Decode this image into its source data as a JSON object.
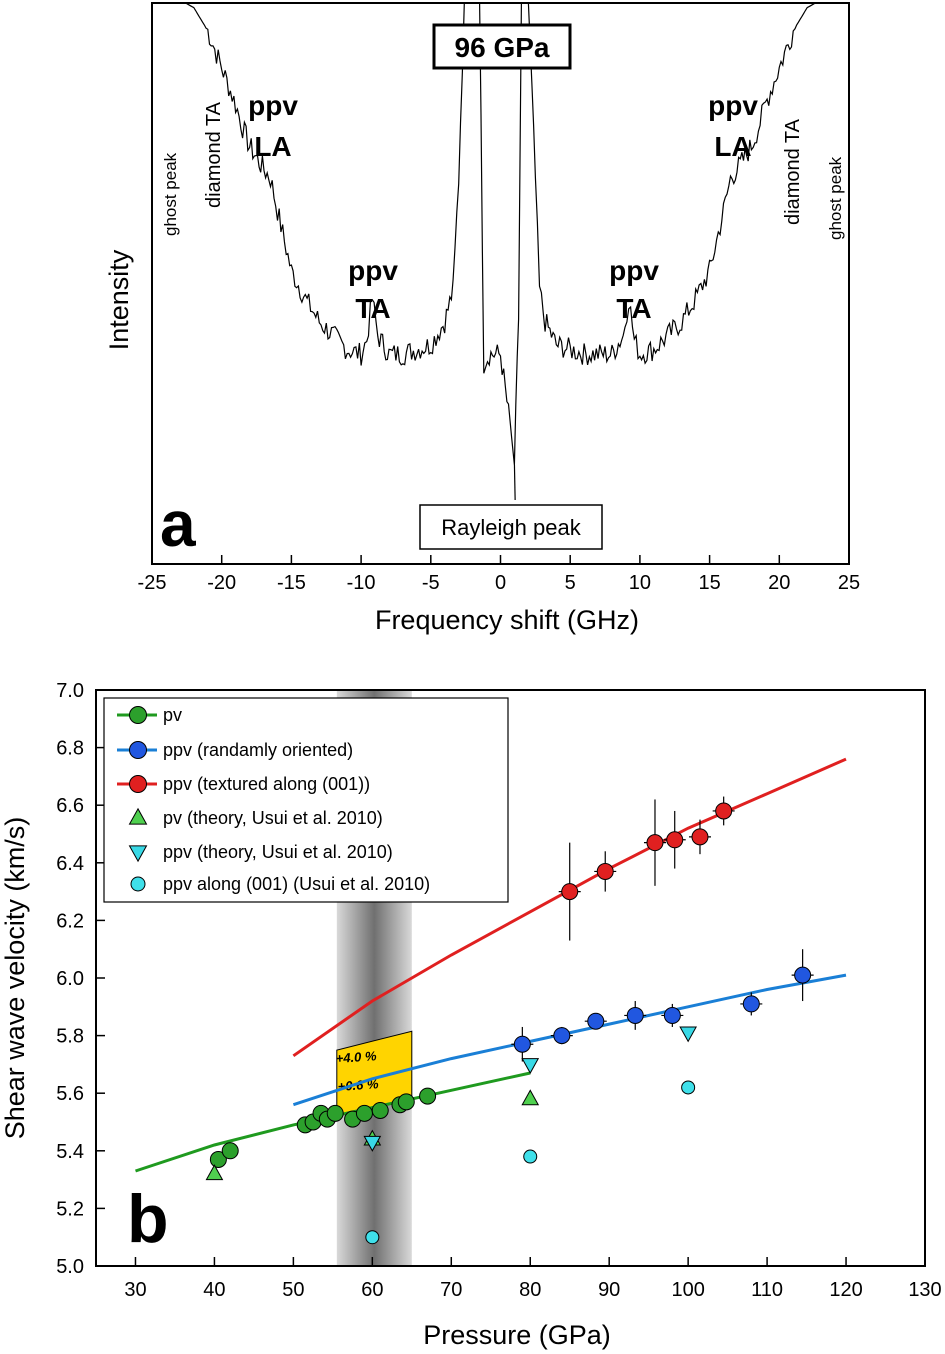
{
  "chart_data": [
    {
      "type": "line",
      "panel_letter": "a",
      "title": "96 GPa",
      "xlabel": "Frequency shift (GHz)",
      "ylabel": "Intensity",
      "xlim": [
        -25,
        25
      ],
      "xticks": [
        -25,
        -20,
        -15,
        -10,
        -5,
        0,
        5,
        10,
        15,
        20,
        25
      ],
      "annotations": {
        "ppv_la_left": [
          "ppv",
          "LA"
        ],
        "ppv_la_right": [
          "ppv",
          "LA"
        ],
        "ppv_ta_left": [
          "ppv",
          "TA"
        ],
        "ppv_ta_right": [
          "ppv",
          "TA"
        ],
        "diamond_ta": "diamond TA",
        "ghost_peak": "ghost peak",
        "rayleigh": "Rayleigh peak"
      },
      "spectrum": {
        "x": [
          -22.6,
          -22.0,
          -21.0,
          -20.0,
          -19.0,
          -18.5,
          -18.0,
          -17.2,
          -16.5,
          -16.0,
          -15.0,
          -14.0,
          -13.0,
          -12.0,
          -11.0,
          -10.0,
          -9.6,
          -9.2,
          -8.8,
          -8.0,
          -7.0,
          -6.0,
          -5.0,
          -4.0,
          -3.4,
          -3.0,
          -2.6,
          -2.0,
          -1.5,
          -1.2,
          -0.8,
          0.0,
          0.8,
          1.0,
          1.3,
          1.5,
          1.8,
          2.0,
          2.5,
          2.8,
          3.2,
          4.0,
          5.0,
          6.0,
          7.0,
          8.0,
          8.8,
          9.2,
          9.6,
          10.0,
          11.0,
          12.0,
          13.0,
          14.0,
          15.0,
          16.0,
          16.5,
          17.2,
          18.0,
          18.5,
          19.0,
          20.0,
          21.0,
          22.0,
          22.6
        ],
        "y": [
          1.0,
          0.99,
          0.94,
          0.86,
          0.78,
          0.73,
          0.69,
          0.65,
          0.62,
          0.55,
          0.42,
          0.36,
          0.31,
          0.28,
          0.25,
          0.24,
          0.27,
          0.36,
          0.28,
          0.24,
          0.24,
          0.25,
          0.26,
          0.31,
          0.38,
          0.62,
          1.0,
          1.0,
          1.0,
          0.22,
          0.24,
          0.24,
          0.06,
          0.0,
          0.32,
          1.0,
          1.0,
          1.0,
          0.62,
          0.38,
          0.31,
          0.26,
          0.25,
          0.24,
          0.24,
          0.24,
          0.28,
          0.36,
          0.27,
          0.24,
          0.25,
          0.28,
          0.31,
          0.36,
          0.42,
          0.55,
          0.62,
          0.65,
          0.69,
          0.73,
          0.78,
          0.86,
          0.94,
          0.99,
          1.0
        ]
      }
    },
    {
      "type": "scatter",
      "panel_letter": "b",
      "xlabel": "Pressure (GPa)",
      "ylabel": "Shear wave velocity (km/s)",
      "xlim": [
        25,
        130
      ],
      "ylim": [
        5.0,
        7.0
      ],
      "xticks": [
        30,
        40,
        50,
        60,
        70,
        80,
        90,
        100,
        110,
        120,
        130
      ],
      "yticks": [
        5.0,
        5.2,
        5.4,
        5.6,
        5.8,
        6.0,
        6.2,
        6.4,
        6.6,
        6.8,
        7.0
      ],
      "legend_position": "top-left",
      "shaded_band": {
        "x": [
          55.5,
          65.0
        ]
      },
      "annotations": {
        "pct_upper": "+4.0 %",
        "pct_lower": "+0.6 %"
      },
      "series": [
        {
          "name": "pv",
          "marker": "circle",
          "color": "#2ca02c",
          "line_color": "#1f9a1f",
          "x": [
            40.5,
            42.0,
            51.5,
            52.5,
            53.5,
            54.3,
            55.3,
            57.5,
            59.0,
            61.0,
            63.5,
            64.3,
            67.0
          ],
          "y": [
            5.37,
            5.4,
            5.49,
            5.5,
            5.53,
            5.51,
            5.53,
            5.51,
            5.53,
            5.54,
            5.56,
            5.57,
            5.59
          ],
          "fit_x": [
            30,
            40,
            50,
            60,
            70,
            80
          ],
          "fit_y": [
            5.33,
            5.42,
            5.49,
            5.55,
            5.61,
            5.67
          ]
        },
        {
          "name": "ppv (randamly oriented)",
          "marker": "circle",
          "color": "#2157e0",
          "line_color": "#1a7fd6",
          "x": [
            79.0,
            84.0,
            88.3,
            93.3,
            98.0,
            108.0,
            114.5
          ],
          "y": [
            5.77,
            5.8,
            5.85,
            5.87,
            5.87,
            5.91,
            6.01
          ],
          "err": [
            0.06,
            0.03,
            0.02,
            0.05,
            0.04,
            0.04,
            0.09
          ],
          "fit_x": [
            50,
            60,
            70,
            80,
            90,
            100,
            110,
            120
          ],
          "fit_y": [
            5.56,
            5.65,
            5.72,
            5.78,
            5.84,
            5.9,
            5.96,
            6.01
          ]
        },
        {
          "name": "ppv (textured along (001))",
          "marker": "circle",
          "color": "#e02020",
          "line_color": "#e02020",
          "x": [
            85.0,
            89.5,
            95.8,
            98.3,
            101.5,
            104.5
          ],
          "y": [
            6.3,
            6.37,
            6.47,
            6.48,
            6.49,
            6.58
          ],
          "err": [
            0.17,
            0.07,
            0.15,
            0.1,
            0.06,
            0.05
          ],
          "fit_x": [
            50,
            60,
            70,
            80,
            90,
            100,
            110,
            120
          ],
          "fit_y": [
            5.73,
            5.92,
            6.08,
            6.23,
            6.38,
            6.52,
            6.64,
            6.76
          ]
        },
        {
          "name": "pv (theory, Usui et al. 2010)",
          "marker": "triangle-up",
          "color": "#4fd04f",
          "x": [
            40.0,
            60.0,
            80.0
          ],
          "y": [
            5.32,
            5.44,
            5.58
          ]
        },
        {
          "name": "ppv (theory, Usui et al. 2010)",
          "marker": "triangle-down",
          "color": "#39d9e6",
          "x": [
            60.0,
            80.0,
            100.0
          ],
          "y": [
            5.43,
            5.7,
            5.81
          ]
        },
        {
          "name": "ppv along (001) (Usui et al. 2010)",
          "marker": "circle",
          "color": "#3fe0ea",
          "x": [
            60.0,
            80.0,
            100.0
          ],
          "y": [
            5.1,
            5.38,
            5.62
          ]
        }
      ]
    }
  ]
}
